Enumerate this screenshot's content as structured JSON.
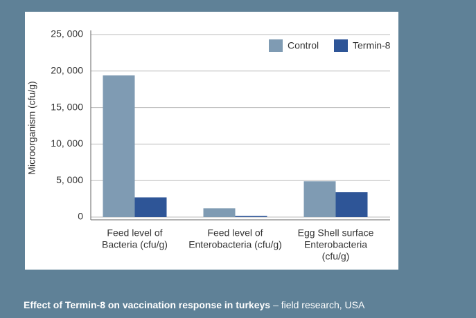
{
  "chart_data": {
    "type": "bar",
    "y_label": "Microorganism (cfu/g)",
    "categories": [
      [
        "Feed level of",
        "Bacteria (cfu/g)"
      ],
      [
        "Feed level of",
        "Enterobacteria (cfu/g)"
      ],
      [
        "Egg Shell surface",
        "Enterobacteria",
        "(cfu/g)"
      ]
    ],
    "series": [
      {
        "name": "Control",
        "color": "#7f9bb3",
        "values": [
          19400,
          1200,
          4900
        ]
      },
      {
        "name": "Termin-8",
        "color": "#2e5597",
        "values": [
          2700,
          150,
          3400
        ]
      }
    ],
    "ylim": [
      0,
      25000
    ],
    "yticks": [
      0,
      {
        "value": 5000,
        "label": "5, 000"
      },
      {
        "value": 10000,
        "label": "10, 000"
      },
      {
        "value": 15000,
        "label": "15, 000"
      },
      {
        "value": 20000,
        "label": "20, 000"
      },
      {
        "value": 25000,
        "label": "25, 000"
      }
    ],
    "grid": true,
    "legend": "top-right",
    "caption": {
      "bold": "Effect of Termin-8 on vaccination response in turkeys",
      "text": "– field research, USA"
    }
  }
}
